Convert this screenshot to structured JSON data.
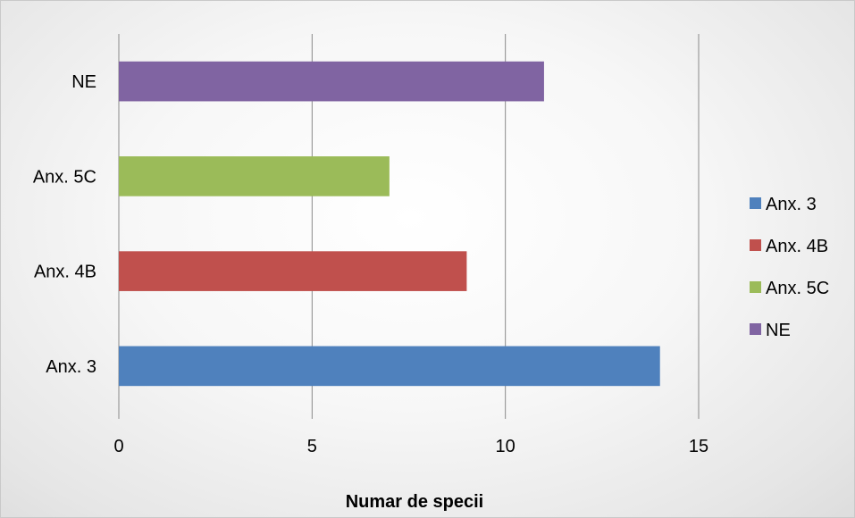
{
  "chart_data": {
    "type": "bar",
    "orientation": "horizontal",
    "title": "",
    "categories": [
      "Anx. 3",
      "Anx. 4B",
      "Anx. 5C",
      "NE"
    ],
    "values": [
      14,
      9,
      7,
      11
    ],
    "colors": [
      "#4F81BD",
      "#C0504D",
      "#9BBB59",
      "#8064A2"
    ],
    "xlabel": "Numar de specii",
    "ylabel": "",
    "xlim": [
      0,
      15
    ],
    "xticks": [
      0,
      5,
      10,
      15
    ],
    "grid": "vertical",
    "legend": {
      "placement": "right",
      "entries": [
        "Anx. 3",
        "Anx. 4B",
        "Anx. 5C",
        "NE"
      ]
    }
  }
}
